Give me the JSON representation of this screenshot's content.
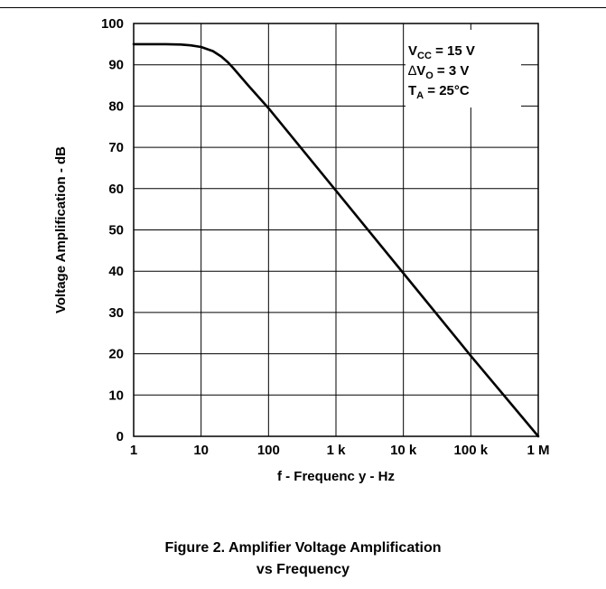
{
  "figure": {
    "caption_line1": "Figure 2. Amplifier Voltage Amplification",
    "caption_line2": "vs Frequency"
  },
  "chart_data": {
    "type": "line",
    "title": "",
    "xlabel": "f - Frequenc y - Hz",
    "ylabel": "Voltage Amplification - dB",
    "xscale": "log",
    "xlim": [
      1,
      1000000
    ],
    "ylim": [
      0,
      100
    ],
    "grid": true,
    "x_ticks": [
      {
        "value": 1,
        "label": "1"
      },
      {
        "value": 10,
        "label": "10"
      },
      {
        "value": 100,
        "label": "100"
      },
      {
        "value": 1000,
        "label": "1 k"
      },
      {
        "value": 10000,
        "label": "10 k"
      },
      {
        "value": 100000,
        "label": "100 k"
      },
      {
        "value": 1000000,
        "label": "1 M"
      }
    ],
    "y_ticks": [
      {
        "value": 0,
        "label": "0"
      },
      {
        "value": 10,
        "label": "10"
      },
      {
        "value": 20,
        "label": "20"
      },
      {
        "value": 30,
        "label": "30"
      },
      {
        "value": 40,
        "label": "40"
      },
      {
        "value": 50,
        "label": "50"
      },
      {
        "value": 60,
        "label": "60"
      },
      {
        "value": 70,
        "label": "70"
      },
      {
        "value": 80,
        "label": "80"
      },
      {
        "value": 90,
        "label": "90"
      },
      {
        "value": 100,
        "label": "100"
      }
    ],
    "series": [
      {
        "x": [
          1,
          2,
          3,
          5,
          7,
          10,
          15,
          20,
          25,
          30,
          50,
          100,
          1000,
          10000,
          100000,
          1000000
        ],
        "y": [
          95,
          95,
          95,
          94.9,
          94.7,
          94.3,
          93.3,
          92,
          90.6,
          89.2,
          85,
          79.5,
          59.5,
          39.5,
          19.5,
          0
        ]
      }
    ],
    "annotations": [
      {
        "base": "V",
        "sub": "CC",
        "rest": " = 15 V"
      },
      {
        "prefix": "∆",
        "base": "V",
        "sub": "O",
        "rest": " = 3 V"
      },
      {
        "base": "T",
        "sub": "A",
        "rest": " = 25°C"
      }
    ]
  }
}
